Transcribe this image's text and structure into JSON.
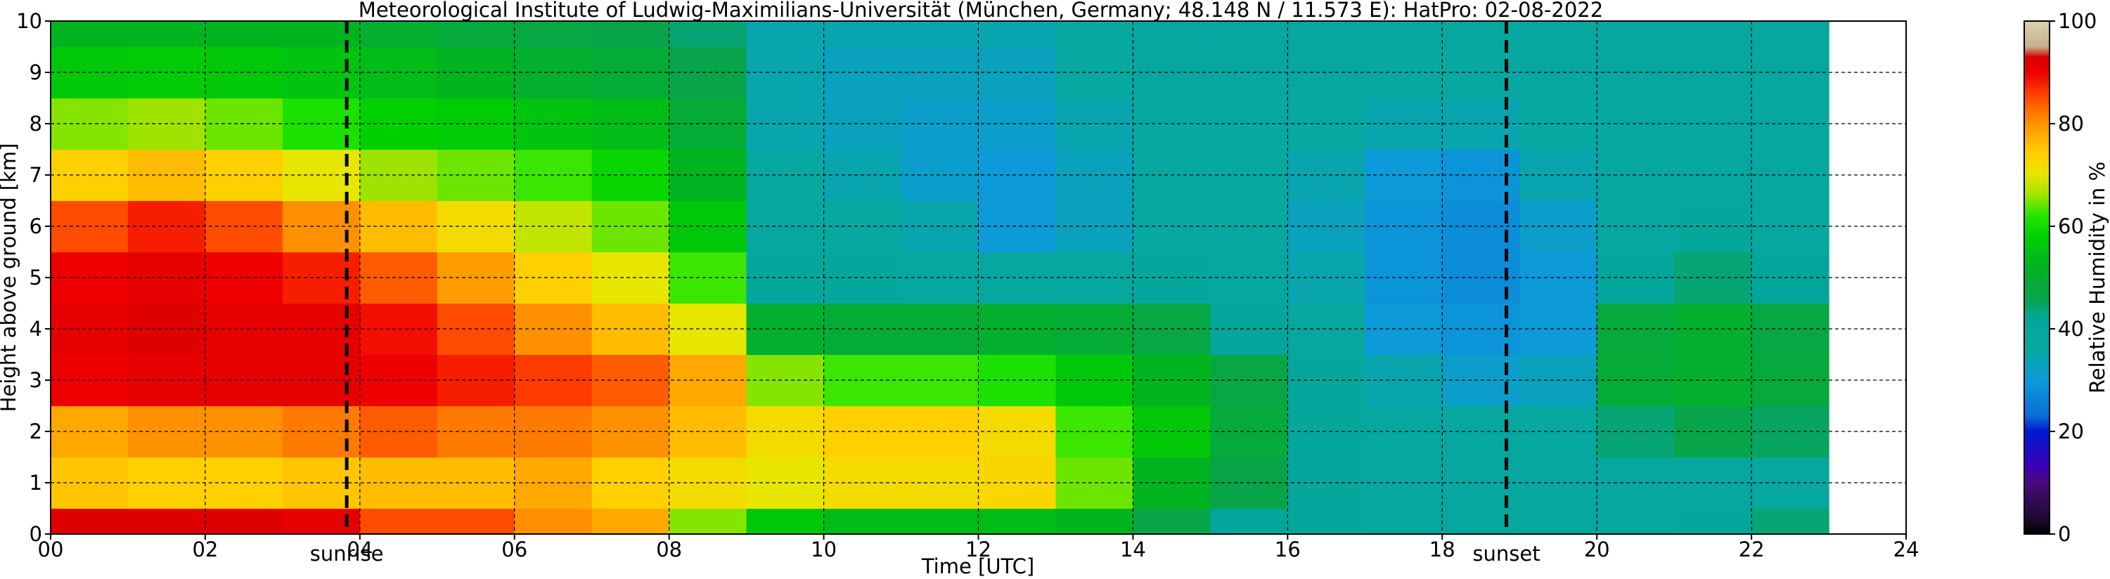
{
  "chart_data": {
    "type": "heatmap",
    "title": "Meteorological Institute of Ludwig-Maximilians-Universität (München, Germany; 48.148 N / 11.573 E):    HatPro: 02-08-2022",
    "xlabel": "Time [UTC]",
    "ylabel": "Height above ground [km]",
    "xlim": [
      0,
      24
    ],
    "ylim": [
      0,
      10
    ],
    "x_ticks": [
      "00",
      "02",
      "04",
      "06",
      "08",
      "10",
      "12",
      "14",
      "16",
      "18",
      "20",
      "22",
      "24"
    ],
    "y_ticks": [
      "0",
      "1",
      "2",
      "3",
      "4",
      "5",
      "6",
      "7",
      "8",
      "9",
      "10"
    ],
    "grid": true,
    "data_end_hour": 23,
    "colorbar": {
      "label": "Relative Humidity in %",
      "range": [
        0,
        100
      ],
      "ticks": [
        "0",
        "20",
        "40",
        "60",
        "80",
        "100"
      ]
    },
    "annotations": [
      {
        "label": "sunrise",
        "time_utc": 3.83
      },
      {
        "label": "sunset",
        "time_utc": 18.83
      }
    ],
    "series": [
      {
        "time_utc": 0.5,
        "height_km": [
          0,
          1,
          2,
          3,
          4,
          5,
          6,
          7,
          8,
          9,
          10
        ],
        "rh_percent": [
          92,
          75,
          78,
          90,
          91,
          90,
          85,
          74,
          65,
          55,
          50
        ]
      },
      {
        "time_utc": 1.5,
        "height_km": [
          0,
          1,
          2,
          3,
          4,
          5,
          6,
          7,
          8,
          9,
          10
        ],
        "rh_percent": [
          92,
          74,
          80,
          91,
          92,
          91,
          88,
          76,
          66,
          56,
          50
        ]
      },
      {
        "time_utc": 2.5,
        "height_km": [
          0,
          1,
          2,
          3,
          4,
          5,
          6,
          7,
          8,
          9,
          10
        ],
        "rh_percent": [
          92,
          74,
          80,
          91,
          91,
          90,
          85,
          74,
          64,
          55,
          50
        ]
      },
      {
        "time_utc": 3.5,
        "height_km": [
          0,
          1,
          2,
          3,
          4,
          5,
          6,
          7,
          8,
          9,
          10
        ],
        "rh_percent": [
          91,
          75,
          82,
          91,
          91,
          88,
          80,
          70,
          60,
          54,
          50
        ]
      },
      {
        "time_utc": 4.5,
        "height_km": [
          0,
          1,
          2,
          3,
          4,
          5,
          6,
          7,
          8,
          9,
          10
        ],
        "rh_percent": [
          85,
          76,
          84,
          90,
          89,
          84,
          76,
          66,
          57,
          52,
          48
        ]
      },
      {
        "time_utc": 5.5,
        "height_km": [
          0,
          1,
          2,
          3,
          4,
          5,
          6,
          7,
          8,
          9,
          10
        ],
        "rh_percent": [
          85,
          76,
          82,
          88,
          85,
          79,
          72,
          64,
          56,
          50,
          46
        ]
      },
      {
        "time_utc": 6.5,
        "height_km": [
          0,
          1,
          2,
          3,
          4,
          5,
          6,
          7,
          8,
          9,
          10
        ],
        "rh_percent": [
          80,
          78,
          82,
          86,
          80,
          74,
          68,
          62,
          54,
          48,
          45
        ]
      },
      {
        "time_utc": 7.5,
        "height_km": [
          0,
          1,
          2,
          3,
          4,
          5,
          6,
          7,
          8,
          9,
          10
        ],
        "rh_percent": [
          78,
          74,
          80,
          84,
          76,
          70,
          64,
          58,
          52,
          47,
          44
        ]
      },
      {
        "time_utc": 8.5,
        "height_km": [
          0,
          1,
          2,
          3,
          4,
          5,
          6,
          7,
          8,
          9,
          10
        ],
        "rh_percent": [
          65,
          72,
          76,
          78,
          70,
          62,
          55,
          50,
          47,
          44,
          42
        ]
      },
      {
        "time_utc": 9.5,
        "height_km": [
          0,
          1,
          2,
          3,
          4,
          5,
          6,
          7,
          8,
          9,
          10
        ],
        "rh_percent": [
          55,
          70,
          72,
          65,
          48,
          38,
          36,
          35,
          33,
          33,
          33
        ]
      },
      {
        "time_utc": 10.5,
        "height_km": [
          0,
          1,
          2,
          3,
          4,
          5,
          6,
          7,
          8,
          9,
          10
        ],
        "rh_percent": [
          52,
          72,
          74,
          62,
          47,
          38,
          35,
          33,
          32,
          32,
          33
        ]
      },
      {
        "time_utc": 11.5,
        "height_km": [
          0,
          1,
          2,
          3,
          4,
          5,
          6,
          7,
          8,
          9,
          10
        ],
        "rh_percent": [
          52,
          72,
          74,
          62,
          47,
          36,
          33,
          31,
          31,
          32,
          33
        ]
      },
      {
        "time_utc": 12.5,
        "height_km": [
          0,
          1,
          2,
          3,
          4,
          5,
          6,
          7,
          8,
          9,
          10
        ],
        "rh_percent": [
          52,
          73,
          72,
          60,
          48,
          36,
          30,
          30,
          31,
          32,
          33
        ]
      },
      {
        "time_utc": 13.5,
        "height_km": [
          0,
          1,
          2,
          3,
          4,
          5,
          6,
          7,
          8,
          9,
          10
        ],
        "rh_percent": [
          50,
          64,
          62,
          55,
          47,
          36,
          32,
          32,
          33,
          34,
          35
        ]
      },
      {
        "time_utc": 14.5,
        "height_km": [
          0,
          1,
          2,
          3,
          4,
          5,
          6,
          7,
          8,
          9,
          10
        ],
        "rh_percent": [
          44,
          50,
          55,
          50,
          45,
          38,
          34,
          34,
          35,
          36,
          36
        ]
      },
      {
        "time_utc": 15.5,
        "height_km": [
          0,
          1,
          2,
          3,
          4,
          5,
          6,
          7,
          8,
          9,
          10
        ],
        "rh_percent": [
          40,
          44,
          46,
          45,
          40,
          37,
          35,
          35,
          35,
          36,
          36
        ]
      },
      {
        "time_utc": 16.5,
        "height_km": [
          0,
          1,
          2,
          3,
          4,
          5,
          6,
          7,
          8,
          9,
          10
        ],
        "rh_percent": [
          38,
          38,
          38,
          38,
          37,
          33,
          32,
          33,
          34,
          36,
          36
        ]
      },
      {
        "time_utc": 17.5,
        "height_km": [
          0,
          1,
          2,
          3,
          4,
          5,
          6,
          7,
          8,
          9,
          10
        ],
        "rh_percent": [
          37,
          37,
          37,
          33,
          30,
          29,
          29,
          30,
          33,
          35,
          36
        ]
      },
      {
        "time_utc": 18.5,
        "height_km": [
          0,
          1,
          2,
          3,
          4,
          5,
          6,
          7,
          8,
          9,
          10
        ],
        "rh_percent": [
          37,
          37,
          36,
          31,
          29,
          28,
          28,
          29,
          33,
          35,
          36
        ]
      },
      {
        "time_utc": 19.5,
        "height_km": [
          0,
          1,
          2,
          3,
          4,
          5,
          6,
          7,
          8,
          9,
          10
        ],
        "rh_percent": [
          37,
          36,
          35,
          32,
          30,
          30,
          31,
          33,
          35,
          36,
          36
        ]
      },
      {
        "time_utc": 20.5,
        "height_km": [
          0,
          1,
          2,
          3,
          4,
          5,
          6,
          7,
          8,
          9,
          10
        ],
        "rh_percent": [
          37,
          36,
          42,
          47,
          46,
          40,
          37,
          36,
          36,
          36,
          36
        ]
      },
      {
        "time_utc": 21.5,
        "height_km": [
          0,
          1,
          2,
          3,
          4,
          5,
          6,
          7,
          8,
          9,
          10
        ],
        "rh_percent": [
          38,
          36,
          44,
          48,
          48,
          42,
          38,
          36,
          36,
          36,
          36
        ]
      },
      {
        "time_utc": 22.5,
        "height_km": [
          0,
          1,
          2,
          3,
          4,
          5,
          6,
          7,
          8,
          9,
          10
        ],
        "rh_percent": [
          42,
          36,
          43,
          46,
          45,
          40,
          37,
          36,
          36,
          36,
          36
        ]
      }
    ]
  }
}
